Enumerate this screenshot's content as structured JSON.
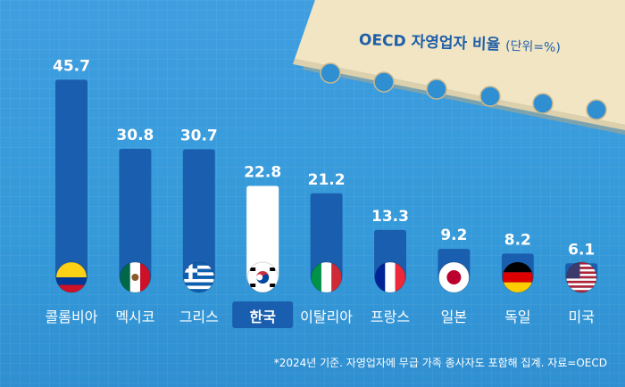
{
  "title": "OECD 자영업자 비율",
  "unit_note": "(단위=%)",
  "footnote": "*2024년 기준. 자영업자에 무급 가족 종사자도 포함해 집계. 자료=OECD",
  "colors": {
    "bar": "#1a5faf",
    "highlight_bar": "#ffffff",
    "background": "#3a9bdc",
    "value_text": "#ffffff",
    "highlight_label_bg": "#1a5faf",
    "paper": "#f1e4c2"
  },
  "chart_data": {
    "type": "bar",
    "title": "OECD 자영업자 비율",
    "unit": "%",
    "categories": [
      "콜롬비아",
      "멕시코",
      "그리스",
      "한국",
      "이탈리아",
      "프랑스",
      "일본",
      "독일",
      "미국"
    ],
    "values": [
      45.7,
      30.8,
      30.7,
      22.8,
      21.2,
      13.3,
      9.2,
      8.2,
      6.1
    ],
    "value_labels": [
      "45.7",
      "30.8",
      "30.7",
      "22.8",
      "21.2",
      "13.3",
      "9.2",
      "8.2",
      "6.1"
    ],
    "flags": [
      "colombia-flag-icon",
      "mexico-flag-icon",
      "greece-flag-icon",
      "korea-flag-icon",
      "italy-flag-icon",
      "france-flag-icon",
      "japan-flag-icon",
      "germany-flag-icon",
      "usa-flag-icon"
    ],
    "highlight": "한국",
    "ylim": [
      0,
      50
    ],
    "grid": false,
    "legend": "none"
  }
}
